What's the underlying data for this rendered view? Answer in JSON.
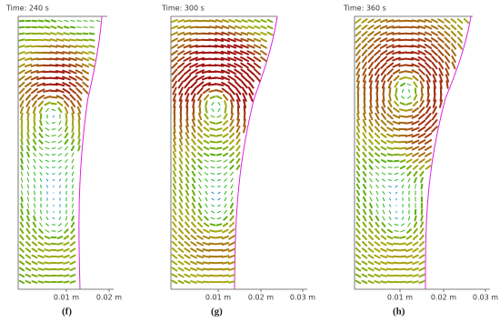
{
  "panels": [
    {
      "time": "Time:  240 s",
      "ticks": [
        "0.01 m",
        "0.02 m"
      ],
      "caption": "(f)"
    },
    {
      "time": "Time:  300 s",
      "ticks": [
        "0.01 m",
        "0.02 m",
        "0.03 m"
      ],
      "caption": "(g)"
    },
    {
      "time": "Time:  360 s",
      "ticks": [
        "0.01 m",
        "0.02 m",
        "0.03 m"
      ],
      "caption": "(h)"
    }
  ]
}
